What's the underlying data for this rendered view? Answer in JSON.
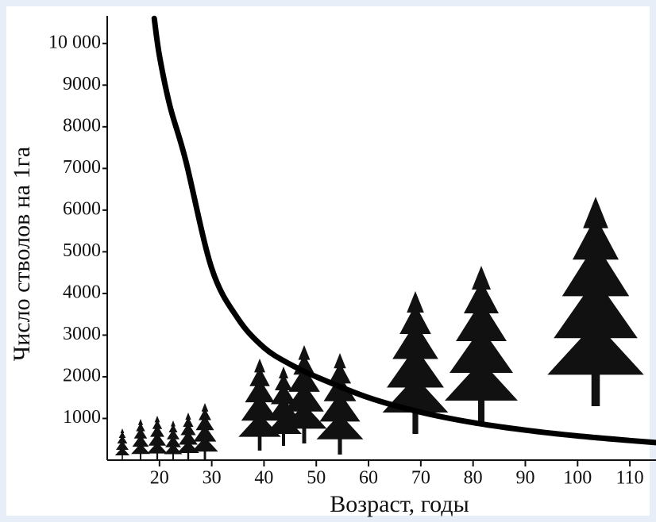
{
  "chart_data": {
    "type": "line",
    "x_label": "Возраст, годы",
    "y_label": "Число стволов на 1га",
    "x": [
      19,
      20,
      22,
      25,
      30,
      35,
      40,
      45,
      50,
      60,
      70,
      80,
      90,
      100,
      110,
      115
    ],
    "values": [
      10600,
      9700,
      8500,
      7200,
      4600,
      3400,
      2700,
      2300,
      2000,
      1500,
      1150,
      900,
      720,
      580,
      470,
      420
    ],
    "color": "#000000",
    "xlim": [
      10,
      115
    ],
    "ylim": [
      0,
      10700
    ],
    "xticks": [
      20,
      30,
      40,
      50,
      60,
      70,
      80,
      90,
      100,
      110
    ],
    "yticks": [
      1000,
      2000,
      3000,
      4000,
      5000,
      6000,
      7000,
      8000,
      9000,
      {
        "value": 10000,
        "label": "10 000"
      }
    ]
  }
}
